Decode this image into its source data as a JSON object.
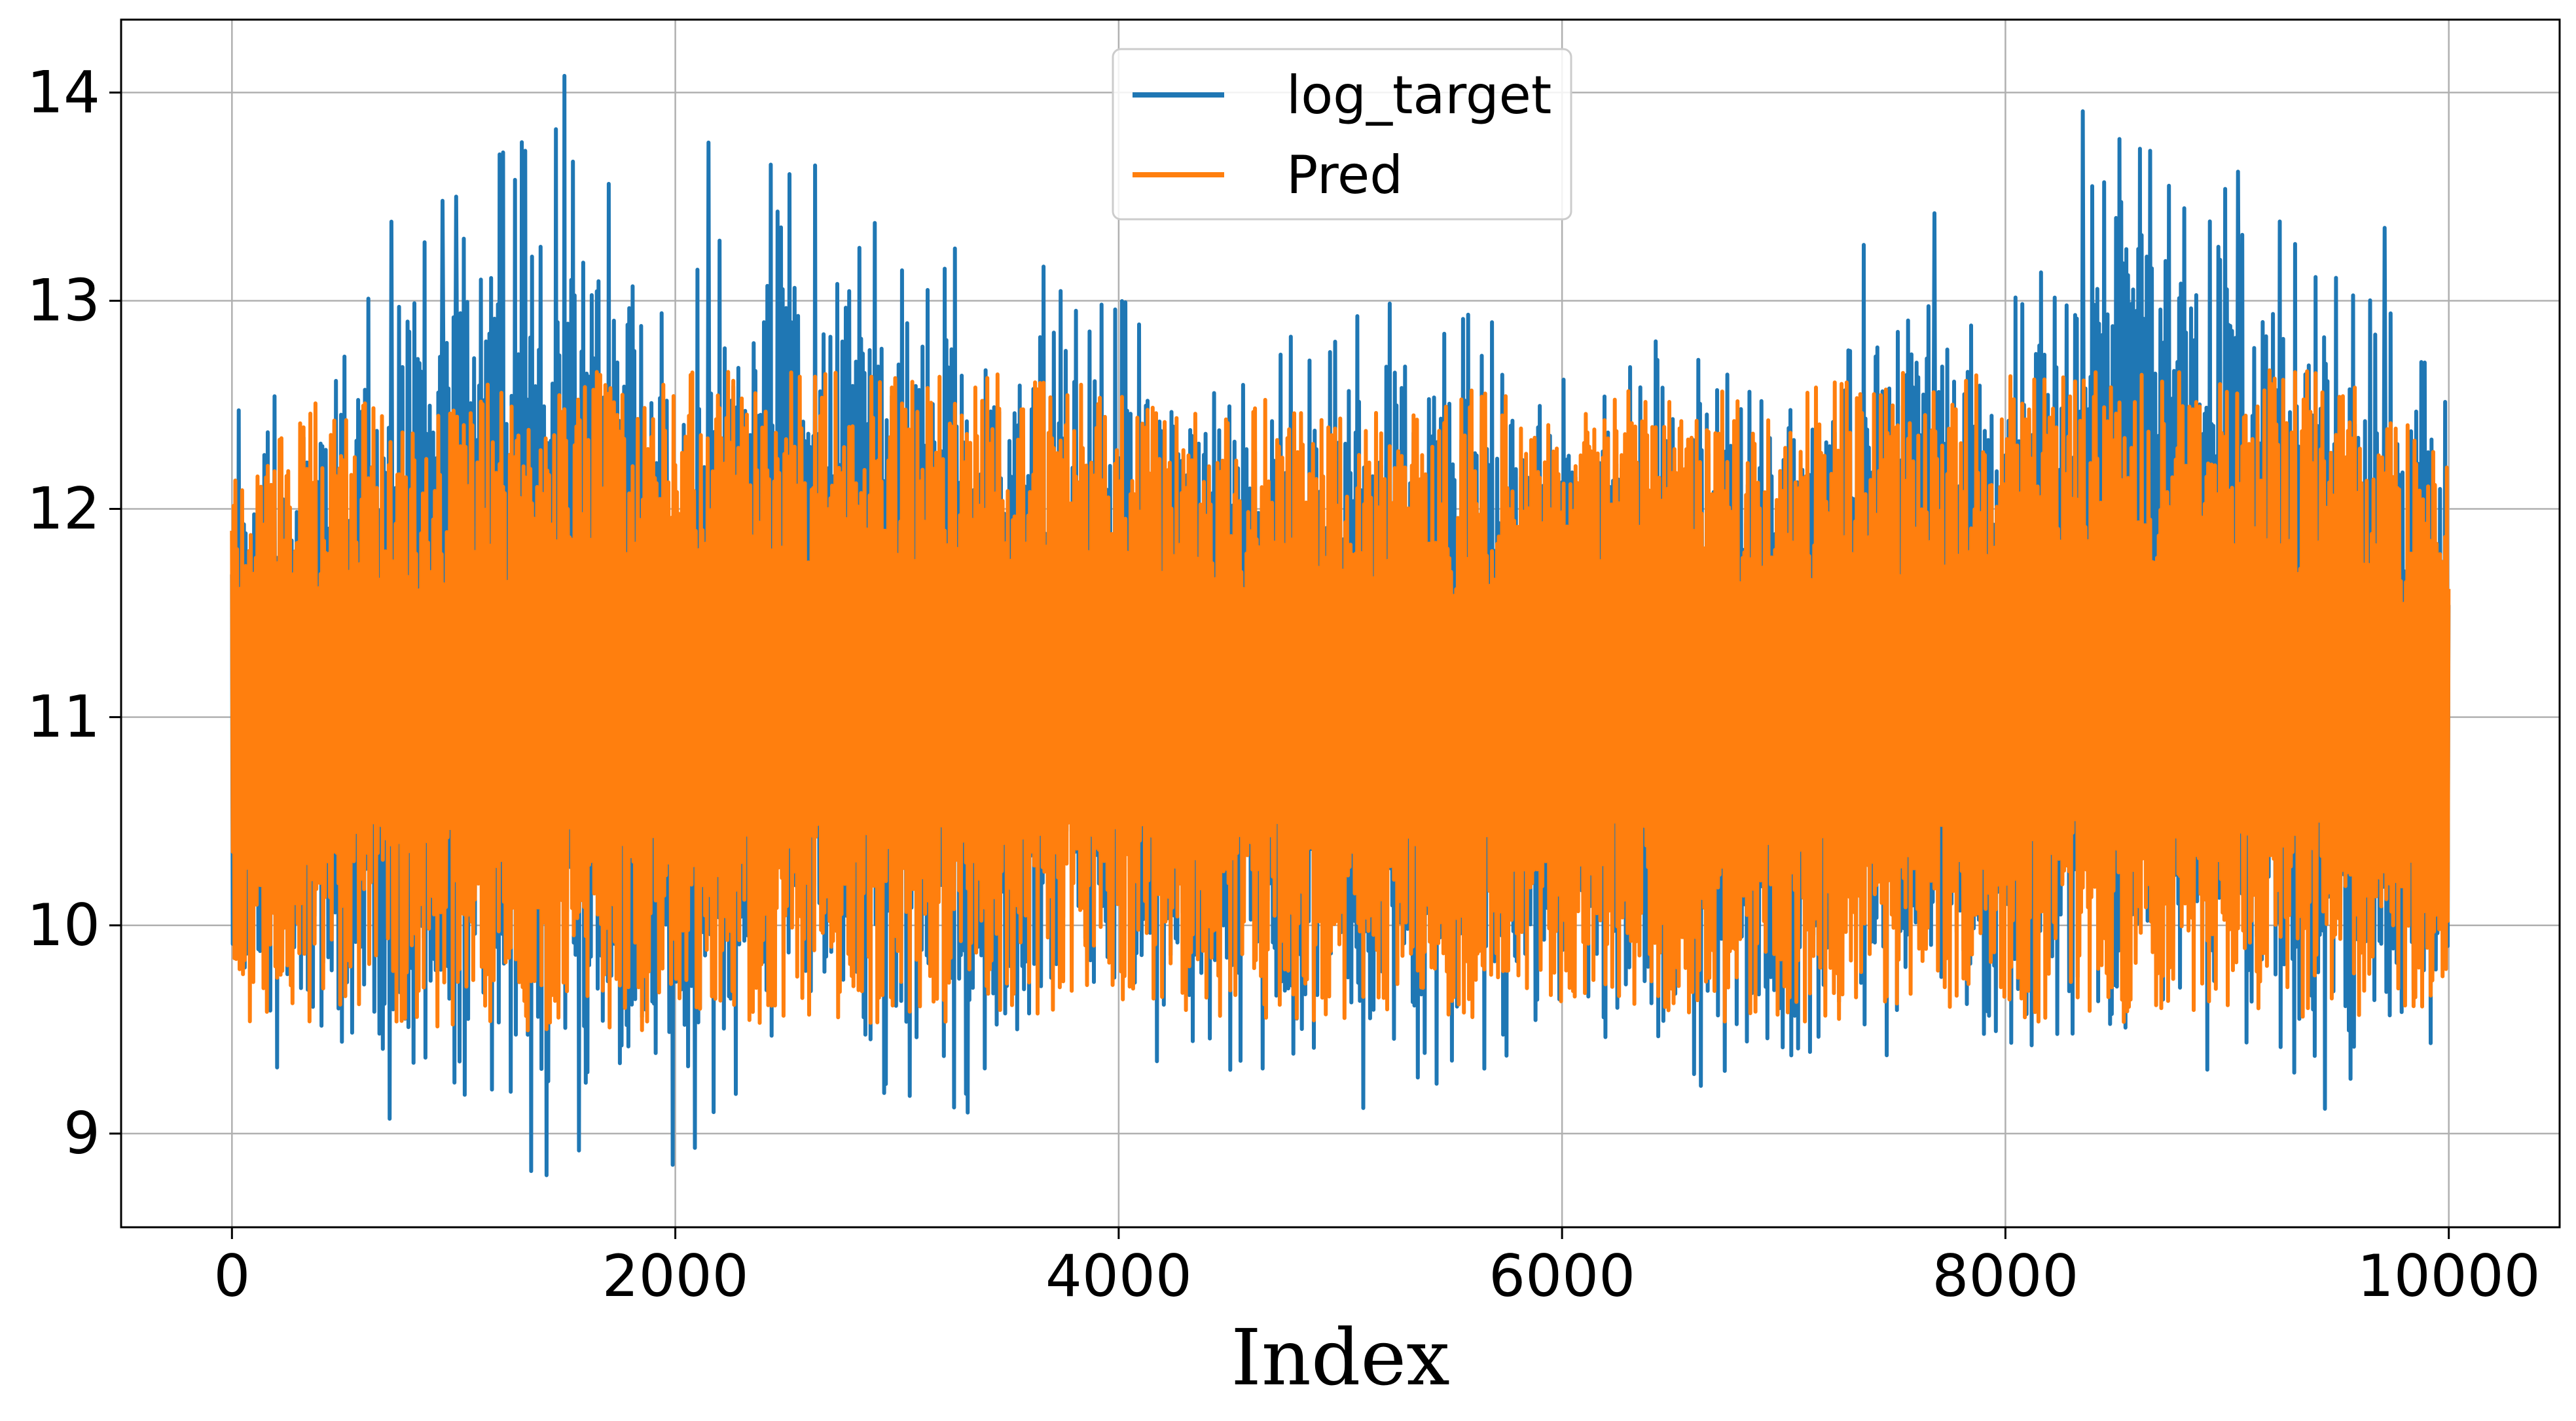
{
  "chart_data": {
    "type": "line",
    "title": "",
    "xlabel": "Index",
    "ylabel": "",
    "xlim": [
      -500,
      10500
    ],
    "ylim": [
      8.55,
      14.35
    ],
    "xticks": [
      0,
      2000,
      4000,
      6000,
      8000,
      10000
    ],
    "xtick_labels": [
      "0",
      "2000",
      "4000",
      "6000",
      "8000",
      "10000"
    ],
    "yticks": [
      9,
      10,
      11,
      12,
      13,
      14
    ],
    "ytick_labels": [
      "9",
      "10",
      "11",
      "12",
      "13",
      "14"
    ],
    "grid": true,
    "legend_position": "upper center",
    "n_points": 10000,
    "series": [
      {
        "name": "log_target",
        "color": "#1f77b4",
        "description_level": "dense noisy signal",
        "envelope": {
          "x": [
            0,
            500,
            1000,
            1500,
            2000,
            2500,
            3000,
            3500,
            4000,
            4500,
            5000,
            5500,
            6000,
            6500,
            7000,
            7500,
            8000,
            8500,
            9000,
            9500,
            10000
          ],
          "min": [
            9.4,
            9.1,
            9.0,
            8.8,
            8.85,
            9.2,
            9.1,
            9.0,
            9.3,
            9.3,
            9.0,
            9.2,
            9.5,
            9.3,
            9.0,
            9.4,
            9.4,
            9.4,
            9.2,
            9.1,
            9.3
          ],
          "max": [
            12.45,
            13.0,
            13.5,
            14.08,
            13.0,
            13.76,
            13.38,
            13.2,
            13.1,
            12.9,
            12.9,
            13.1,
            12.7,
            12.9,
            12.9,
            13.42,
            13.0,
            13.91,
            13.62,
            13.3,
            12.6
          ]
        },
        "spikes": [
          {
            "x": 1500,
            "y": 14.08
          },
          {
            "x": 2150,
            "y": 13.76
          },
          {
            "x": 8350,
            "y": 13.91
          },
          {
            "x": 9050,
            "y": 13.62
          },
          {
            "x": 2630,
            "y": 13.65
          },
          {
            "x": 7680,
            "y": 13.42
          },
          {
            "x": 1010,
            "y": 13.5
          },
          {
            "x": 950,
            "y": 13.48
          },
          {
            "x": 720,
            "y": 13.38
          },
          {
            "x": 9710,
            "y": 13.35
          },
          {
            "x": 1420,
            "y": 8.8
          },
          {
            "x": 1990,
            "y": 8.85
          },
          {
            "x": 1350,
            "y": 8.82
          }
        ]
      },
      {
        "name": "Pred",
        "color": "#ff7f0e",
        "envelope": {
          "x": [
            0,
            500,
            1000,
            1500,
            2000,
            2500,
            3000,
            3500,
            4000,
            4500,
            5000,
            5500,
            6000,
            6500,
            7000,
            7500,
            8000,
            8500,
            9000,
            9500,
            10000
          ],
          "min": [
            9.5,
            9.5,
            9.45,
            9.45,
            9.45,
            9.5,
            9.5,
            9.5,
            9.6,
            9.5,
            9.5,
            9.5,
            9.6,
            9.5,
            9.5,
            9.5,
            9.5,
            9.5,
            9.55,
            9.5,
            9.6
          ],
          "max": [
            12.4,
            12.6,
            12.6,
            12.7,
            12.7,
            12.7,
            12.7,
            12.7,
            12.6,
            12.6,
            12.5,
            12.6,
            12.6,
            12.6,
            12.6,
            12.7,
            12.7,
            12.7,
            12.7,
            12.7,
            12.3
          ]
        }
      }
    ]
  }
}
